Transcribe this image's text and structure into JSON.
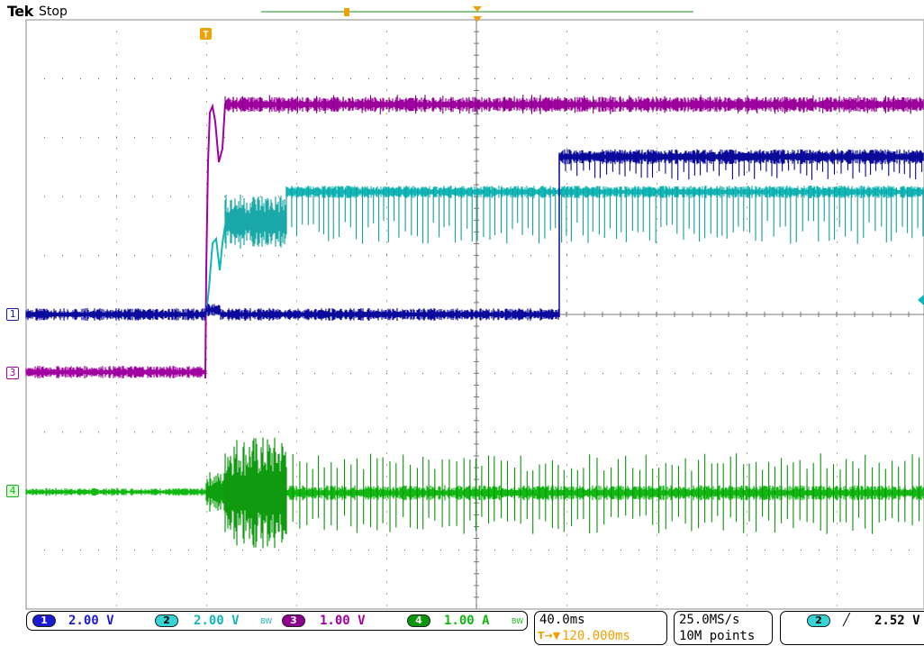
{
  "header": {
    "brand": "Tek",
    "state": "Stop"
  },
  "trigger_marker_label": "T",
  "ch_markers": [
    {
      "label": "1",
      "color": "#1a1aa6"
    },
    {
      "label": "3",
      "color": "#a000a0"
    },
    {
      "label": "4",
      "color": "#16b016"
    }
  ],
  "colors": {
    "ch1": "#0a0a9c",
    "ch2": "#13b6b6",
    "ch3": "#a000a0",
    "ch4": "#12b812",
    "grid": "#555555",
    "trigger": "#f0a000",
    "record_bar": "#1e8a1e"
  },
  "status": {
    "ch1": {
      "num": "1",
      "scale": "2.00 V"
    },
    "ch2": {
      "num": "2",
      "scale": "2.00 V",
      "bw": "BW"
    },
    "ch3": {
      "num": "3",
      "scale": "1.00 V"
    },
    "ch4": {
      "num": "4",
      "scale": "1.00 A",
      "bw": "BW"
    },
    "timebase": {
      "scale": "40.0ms",
      "position": "120.000ms",
      "pos_prefix": "T→▼"
    },
    "sampling": {
      "rate": "25.0MS/s",
      "record": "10M points"
    },
    "trigger": {
      "source": "2",
      "slope": "╱",
      "level": "2.52 V"
    }
  }
}
